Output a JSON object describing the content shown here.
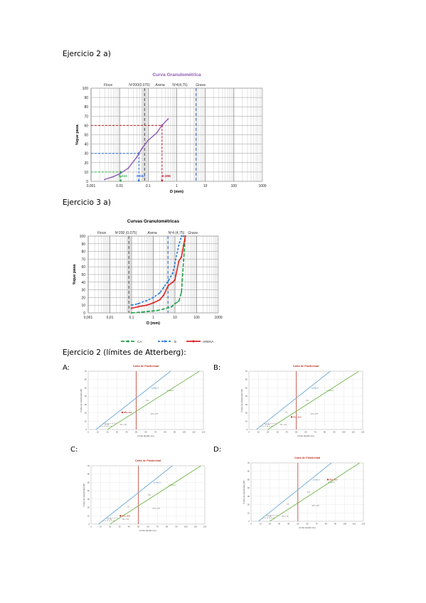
{
  "headings": {
    "ex2a": "Ejercicio 2 a)",
    "ex3a": "Ejercicio 3 a)",
    "ex2b": "Ejercicio 2 (límites de Atterberg):"
  },
  "panel_labels": [
    "A:",
    "B:",
    "C:",
    "D:"
  ],
  "chart1": {
    "title": "Curva Granulométrica",
    "zones": [
      "Finos",
      "Nº200(0,075)",
      "Arena",
      "Nº4(4,75)",
      "Grava"
    ],
    "ylabel": "%que pasa",
    "xlabel": "D (mm)",
    "xticks": [
      "0.001",
      "0.01",
      "0.1",
      "1",
      "10",
      "100",
      "1000"
    ],
    "yticks": [
      "0",
      "10",
      "20",
      "30",
      "40",
      "50",
      "60",
      "70",
      "80",
      "90",
      "100"
    ],
    "annotations": [
      "0.011",
      "0.047",
      "0.306"
    ]
  },
  "chart2": {
    "title": "Curvas Granulométricas",
    "zones": [
      "Finos",
      "Nº200 (0,075)",
      "Arena",
      "Nº4 (4,75)",
      "Grava"
    ],
    "ylabel": "%que pasa",
    "xlabel": "D (mm)",
    "xticks": [
      "0,001",
      "0,01",
      "0,1",
      "1",
      "10",
      "100",
      "1000"
    ],
    "yticks": [
      "0",
      "10",
      "20",
      "30",
      "40",
      "50",
      "60",
      "70",
      "80",
      "90",
      "100"
    ],
    "legend": [
      "CA",
      "B",
      "ARENA"
    ]
  },
  "plasticity": {
    "title": "Carta de Plasticidad",
    "ylabel": "Índice de plasticidad (IP)",
    "xlabel": "Límite líquido (LL)",
    "line_labels": [
      "Línea U",
      "Línea A"
    ],
    "zones": [
      "CH",
      "CL",
      "MH u OH",
      "ML u OL",
      "CL-ML"
    ],
    "xticks": [
      "0",
      "10",
      "20",
      "30",
      "40",
      "50",
      "60",
      "70",
      "80",
      "90",
      "100",
      "110",
      "120"
    ],
    "yticks": [
      "0",
      "10",
      "20",
      "30",
      "40",
      "50",
      "60",
      "70"
    ],
    "points": [
      "35.5, 20.5",
      "45.0, 15.0",
      "31.0, 10.0",
      "82.0, 50.0"
    ]
  },
  "chart_data": [
    {
      "type": "line",
      "title": "Curva Granulométrica",
      "xlabel": "D (mm)",
      "ylabel": "%que pasa",
      "xscale": "log",
      "xlim": [
        0.001,
        1000
      ],
      "ylim": [
        0,
        100
      ],
      "grid": true,
      "series": [
        {
          "x": [
            0.003,
            0.006,
            0.01,
            0.02,
            0.04,
            0.06,
            0.1,
            0.2,
            0.3,
            0.5
          ],
          "y": [
            2,
            5,
            8,
            14,
            26,
            35,
            44,
            52,
            60,
            67
          ]
        }
      ],
      "reference_lines": [
        {
          "y": 10,
          "x": 0.011
        },
        {
          "y": 30,
          "x": 0.047
        },
        {
          "y": 60,
          "x": 0.306
        }
      ],
      "vertical_markers": [
        0.075,
        4.75
      ]
    },
    {
      "type": "line",
      "title": "Curvas Granulométricas",
      "xlabel": "D (mm)",
      "ylabel": "%que pasa",
      "xscale": "log",
      "xlim": [
        0.001,
        1000
      ],
      "ylim": [
        0,
        100
      ],
      "grid": true,
      "legend": "bottom",
      "series": [
        {
          "name": "CA",
          "x": [
            0.1,
            0.3,
            0.6,
            1.5,
            3,
            7,
            10,
            15,
            20,
            25,
            30
          ],
          "y": [
            0,
            1,
            2,
            3,
            5,
            8,
            12,
            15,
            27,
            68,
            100
          ]
        },
        {
          "name": "B",
          "x": [
            0.1,
            0.2,
            0.5,
            1,
            2,
            3,
            5,
            8,
            10,
            15,
            20,
            25
          ],
          "y": [
            10,
            12,
            16,
            20,
            26,
            33,
            42,
            52,
            65,
            88,
            100,
            100
          ]
        },
        {
          "name": "ARENA",
          "x": [
            0.1,
            0.2,
            0.5,
            1,
            2,
            3,
            5,
            8,
            10,
            15,
            20,
            25,
            30
          ],
          "y": [
            6,
            8,
            10,
            13,
            17,
            23,
            36,
            40,
            43,
            67,
            73,
            88,
            100
          ]
        }
      ],
      "vertical_markers": [
        0.075,
        4.75
      ]
    }
  ]
}
